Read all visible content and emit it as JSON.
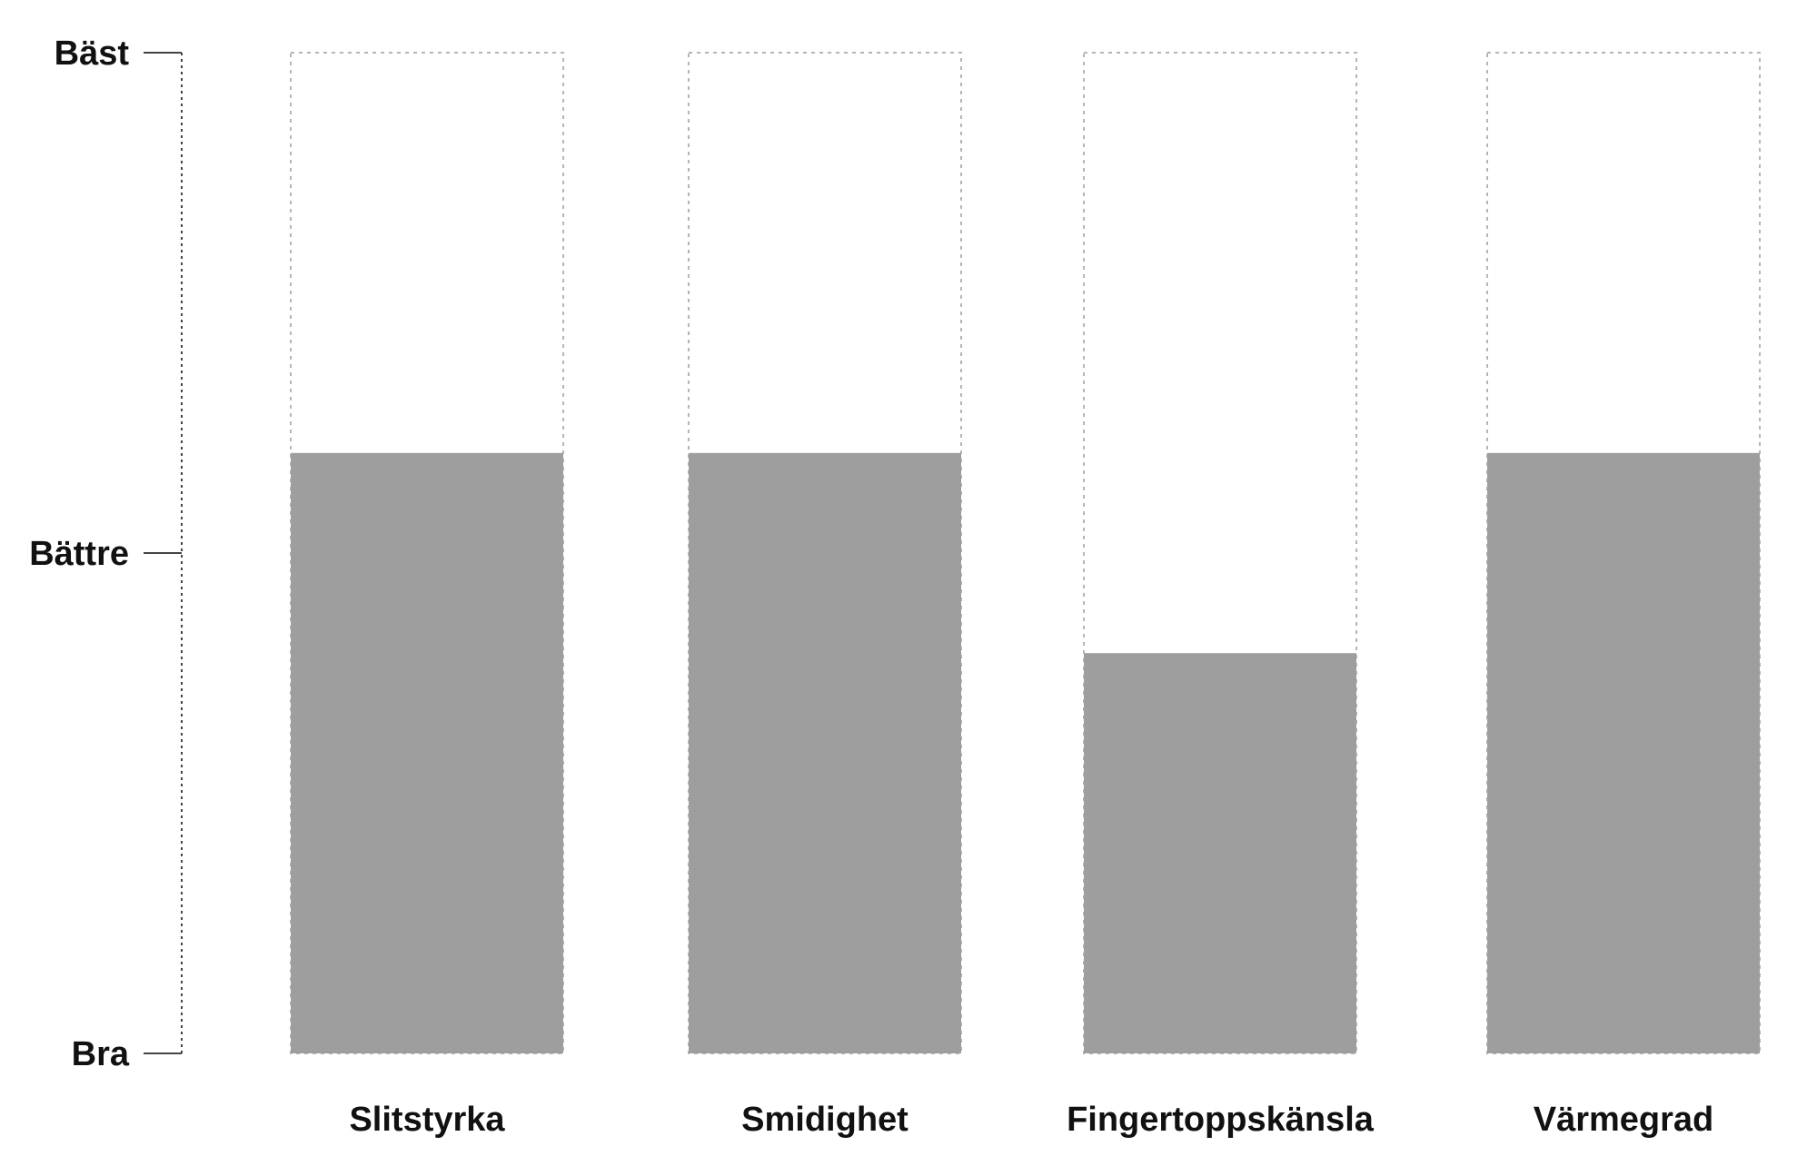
{
  "chart_data": {
    "type": "bar",
    "categories": [
      "Slitstyrka",
      "Smidighet",
      "Fingertoppskänsla",
      "Värmegrad"
    ],
    "values": [
      2.2,
      2.2,
      1.8,
      2.2
    ],
    "ylim": [
      1,
      3
    ],
    "yticks": [
      {
        "value": 3,
        "label": "Bäst"
      },
      {
        "value": 2,
        "label": "Bättre"
      },
      {
        "value": 1,
        "label": "Bra"
      }
    ],
    "grid": false,
    "title": "",
    "xlabel": "",
    "ylabel": "",
    "colors": {
      "filled": "#9e9e9e",
      "outline": "#b5b5b5",
      "axis": "#444444"
    }
  }
}
